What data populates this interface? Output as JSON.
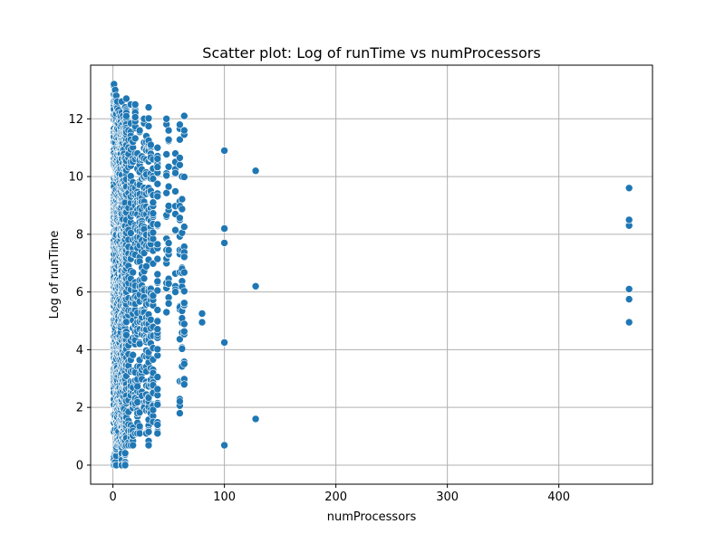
{
  "chart_data": {
    "type": "scatter",
    "title": "Scatter plot: Log of runTime vs numProcessors",
    "xlabel": "numProcessors",
    "ylabel": "Log of runTime",
    "xlim": [
      -20,
      484
    ],
    "ylim": [
      -0.66,
      13.86
    ],
    "xticks": [
      0,
      100,
      200,
      300,
      400
    ],
    "yticks": [
      0,
      2,
      4,
      6,
      8,
      10,
      12
    ],
    "grid": true,
    "point_color": "#1f77b4",
    "clusters": [
      {
        "x": 1,
        "y": [
          0,
          13.2
        ]
      },
      {
        "x": 2,
        "y": [
          0,
          13.0
        ]
      },
      {
        "x": 3,
        "y": [
          0,
          12.8
        ]
      },
      {
        "x": 4,
        "y": [
          0.69,
          12.6
        ]
      },
      {
        "x": 5,
        "y": [
          0.69,
          12.3
        ]
      },
      {
        "x": 6,
        "y": [
          0.69,
          12.2
        ]
      },
      {
        "x": 7,
        "y": [
          0.69,
          12.1
        ]
      },
      {
        "x": 8,
        "y": [
          0,
          12.6
        ]
      },
      {
        "x": 9,
        "y": [
          0.69,
          12.1
        ]
      },
      {
        "x": 10,
        "y": [
          0.69,
          12.0
        ]
      },
      {
        "x": 11,
        "y": [
          0,
          12.4
        ]
      },
      {
        "x": 12,
        "y": [
          0.69,
          12.7
        ]
      },
      {
        "x": 14,
        "y": [
          0.69,
          11.6
        ]
      },
      {
        "x": 16,
        "y": [
          0.69,
          12.5
        ]
      },
      {
        "x": 18,
        "y": [
          0.69,
          11.2
        ]
      },
      {
        "x": 20,
        "y": [
          1.1,
          12.5
        ]
      },
      {
        "x": 22,
        "y": [
          1.1,
          10.8
        ]
      },
      {
        "x": 24,
        "y": [
          1.1,
          11.6
        ]
      },
      {
        "x": 26,
        "y": [
          2.4,
          10.7
        ]
      },
      {
        "x": 28,
        "y": [
          2.0,
          12.0
        ]
      },
      {
        "x": 30,
        "y": [
          1.1,
          11.4
        ]
      },
      {
        "x": 32,
        "y": [
          0.69,
          12.4
        ]
      },
      {
        "x": 34,
        "y": [
          1.8,
          11.1
        ]
      },
      {
        "x": 36,
        "y": [
          1.5,
          10.6
        ]
      },
      {
        "x": 40,
        "y": [
          1.1,
          11.0
        ]
      },
      {
        "x": 48,
        "y": [
          5.3,
          12.0
        ]
      },
      {
        "x": 50,
        "y": [
          5.6,
          11.6
        ]
      },
      {
        "x": 56,
        "y": [
          6.0,
          10.8
        ]
      },
      {
        "x": 60,
        "y": [
          1.8,
          11.8
        ]
      },
      {
        "x": 62,
        "y": [
          2.9,
          10.0
        ]
      },
      {
        "x": 64,
        "y": [
          2.8,
          12.1
        ]
      }
    ],
    "points": [
      [
        80,
        4.95
      ],
      [
        80,
        5.25
      ],
      [
        100,
        0.69
      ],
      [
        100,
        4.25
      ],
      [
        100,
        7.7
      ],
      [
        100,
        8.2
      ],
      [
        100,
        10.9
      ],
      [
        128,
        1.6
      ],
      [
        128,
        6.2
      ],
      [
        128,
        10.2
      ],
      [
        463,
        4.95
      ],
      [
        463,
        5.75
      ],
      [
        463,
        6.1
      ],
      [
        463,
        8.3
      ],
      [
        463,
        8.5
      ],
      [
        463,
        9.6
      ]
    ]
  }
}
